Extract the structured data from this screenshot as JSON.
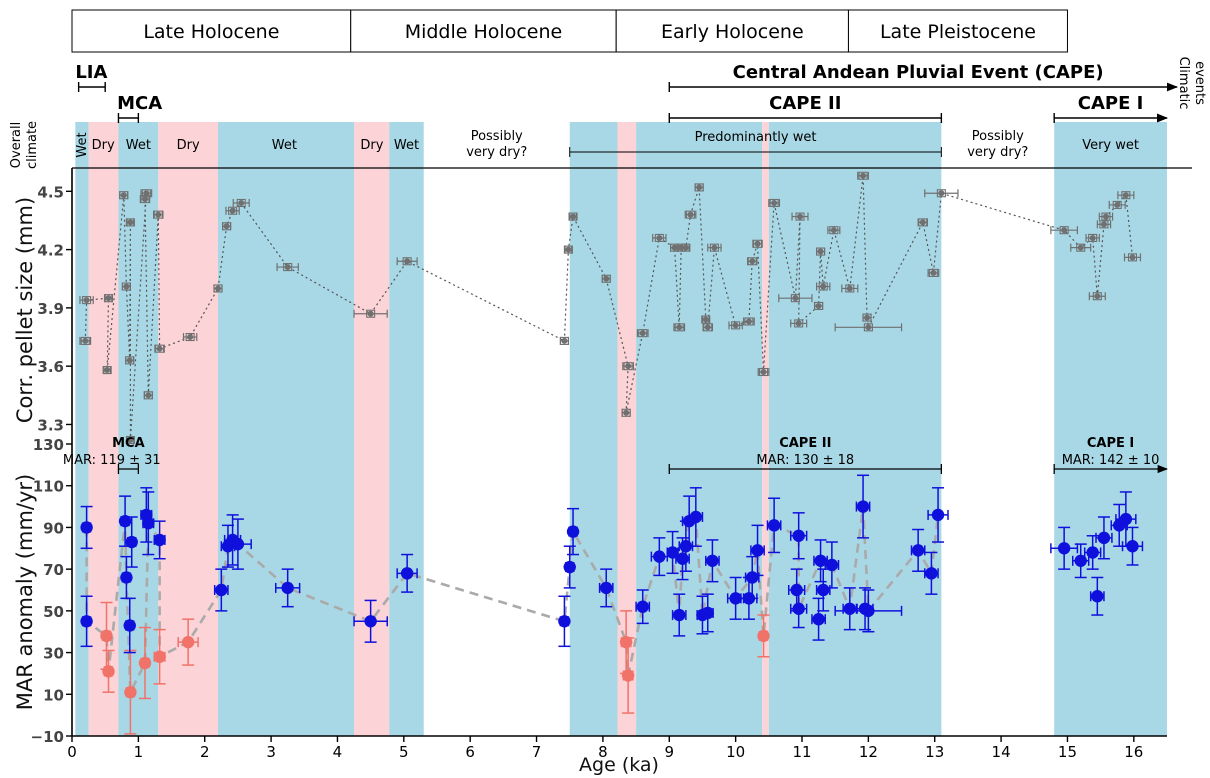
{
  "chart_data": {
    "type": "scatter",
    "x_axis": {
      "label": "Age (ka)",
      "range": [
        0,
        16.5
      ],
      "ticks": [
        0,
        1,
        2,
        3,
        4,
        5,
        6,
        7,
        8,
        9,
        10,
        11,
        12,
        13,
        14,
        15,
        16
      ]
    },
    "colors": {
      "wet_band": "#a8d8e6",
      "dry_band": "#fcd3d6",
      "gray_series": "#707070",
      "wet_points": "#1010dd",
      "dry_points": "#f07268"
    },
    "epochs": [
      {
        "label": "Late Holocene",
        "from": 0,
        "to": 4.2
      },
      {
        "label": "Middle Holocene",
        "from": 4.2,
        "to": 8.2
      },
      {
        "label": "Early Holocene",
        "from": 8.2,
        "to": 11.7
      },
      {
        "label": "Late Pleistocene",
        "from": 11.7,
        "to": 15
      }
    ],
    "climatic_events_label": "Climatic events",
    "events": [
      {
        "label": "LIA",
        "from": 0.1,
        "to": 0.5,
        "level": 1,
        "arrow": false
      },
      {
        "label": "Central Andean Pluvial Event (CAPE)",
        "from": 9.0,
        "to": 16.65,
        "level": 1,
        "arrow": true
      },
      {
        "label": "MCA",
        "from": 0.7,
        "to": 1.0,
        "level": 2,
        "arrow": false
      },
      {
        "label": "CAPE II",
        "from": 9.0,
        "to": 13.1,
        "level": 2,
        "arrow": false
      },
      {
        "label": "CAPE I",
        "from": 14.8,
        "to": 16.5,
        "level": 2,
        "arrow": true
      }
    ],
    "overall_climate_label": "Overall climate",
    "climate_bands": [
      {
        "from": 0.05,
        "to": 0.25,
        "type": "wet"
      },
      {
        "from": 0.25,
        "to": 0.7,
        "type": "dry"
      },
      {
        "from": 0.7,
        "to": 1.3,
        "type": "wet"
      },
      {
        "from": 1.3,
        "to": 2.2,
        "type": "dry"
      },
      {
        "from": 2.2,
        "to": 4.25,
        "type": "wet"
      },
      {
        "from": 4.25,
        "to": 4.78,
        "type": "dry"
      },
      {
        "from": 4.78,
        "to": 5.3,
        "type": "wet"
      },
      {
        "from": 7.5,
        "to": 8.22,
        "type": "wet"
      },
      {
        "from": 8.22,
        "to": 8.5,
        "type": "dry"
      },
      {
        "from": 8.5,
        "to": 10.4,
        "type": "wet"
      },
      {
        "from": 10.4,
        "to": 10.5,
        "type": "dry"
      },
      {
        "from": 10.5,
        "to": 13.1,
        "type": "wet"
      },
      {
        "from": 14.8,
        "to": 16.5,
        "type": "wet"
      }
    ],
    "climate_labels": [
      {
        "text": "Wet",
        "x": 0.15,
        "rotated": true
      },
      {
        "text": "Dry",
        "x": 0.47
      },
      {
        "text": "Wet",
        "x": 1.0
      },
      {
        "text": "Dry",
        "x": 1.75
      },
      {
        "text": "Wet",
        "x": 3.2
      },
      {
        "text": "Dry",
        "x": 4.52
      },
      {
        "text": "Wet",
        "x": 5.04
      },
      {
        "text": "Possibly very dry?",
        "x": 6.4
      },
      {
        "text": "Predominantly wet",
        "x": 10.3
      },
      {
        "text": "Possibly very dry?",
        "x": 13.95
      },
      {
        "text": "Very wet",
        "x": 15.65
      }
    ],
    "predominantly_wet_span": [
      7.5,
      13.1
    ],
    "top_panel": {
      "ylabel": "Corr. pellet size (mm)",
      "ylim": [
        3.22,
        4.62
      ],
      "yticks": [
        3.3,
        3.6,
        3.9,
        4.2,
        4.5
      ],
      "points": [
        [
          0.2,
          3.73,
          0.08
        ],
        [
          0.22,
          3.94,
          0.1
        ],
        [
          0.55,
          3.95,
          0.05
        ],
        [
          0.53,
          3.58,
          0.05
        ],
        [
          0.78,
          4.48,
          0.06
        ],
        [
          0.82,
          4.01,
          0.06
        ],
        [
          0.87,
          3.63,
          0.06
        ],
        [
          0.88,
          4.34,
          0.05
        ],
        [
          0.88,
          3.22,
          0.05
        ],
        [
          1.12,
          4.49,
          0.08
        ],
        [
          1.1,
          4.46,
          0.07
        ],
        [
          1.15,
          3.45,
          0.06
        ],
        [
          1.3,
          4.38,
          0.07
        ],
        [
          1.32,
          3.69,
          0.07
        ],
        [
          1.78,
          3.75,
          0.1
        ],
        [
          2.2,
          4.0,
          0.06
        ],
        [
          2.33,
          4.32,
          0.06
        ],
        [
          2.42,
          4.4,
          0.1
        ],
        [
          2.55,
          4.44,
          0.12
        ],
        [
          3.25,
          4.11,
          0.16
        ],
        [
          4.5,
          3.87,
          0.25
        ],
        [
          5.05,
          4.14,
          0.15
        ],
        [
          7.42,
          3.73,
          0.06
        ],
        [
          7.48,
          4.2,
          0.05
        ],
        [
          7.55,
          4.37,
          0.05
        ],
        [
          8.05,
          4.05,
          0.06
        ],
        [
          8.38,
          3.6,
          0.08
        ],
        [
          8.35,
          3.36,
          0.06
        ],
        [
          8.6,
          3.77,
          0.08
        ],
        [
          8.85,
          4.26,
          0.1
        ],
        [
          9.08,
          4.21,
          0.06
        ],
        [
          9.15,
          3.8,
          0.08
        ],
        [
          9.18,
          4.21,
          0.06
        ],
        [
          9.25,
          4.21,
          0.05
        ],
        [
          9.32,
          4.38,
          0.08
        ],
        [
          9.45,
          4.52,
          0.06
        ],
        [
          9.55,
          3.84,
          0.05
        ],
        [
          9.58,
          3.8,
          0.07
        ],
        [
          9.68,
          4.21,
          0.1
        ],
        [
          10.0,
          3.81,
          0.1
        ],
        [
          10.2,
          3.83,
          0.08
        ],
        [
          10.25,
          4.14,
          0.07
        ],
        [
          10.33,
          4.23,
          0.07
        ],
        [
          10.42,
          3.57,
          0.08
        ],
        [
          10.58,
          4.44,
          0.08
        ],
        [
          10.9,
          3.95,
          0.25
        ],
        [
          10.97,
          4.37,
          0.12
        ],
        [
          10.95,
          3.82,
          0.12
        ],
        [
          11.25,
          3.91,
          0.06
        ],
        [
          11.28,
          4.19,
          0.06
        ],
        [
          11.32,
          4.01,
          0.1
        ],
        [
          11.48,
          4.3,
          0.09
        ],
        [
          11.72,
          4.0,
          0.12
        ],
        [
          11.92,
          4.58,
          0.08
        ],
        [
          11.98,
          3.85,
          0.06
        ],
        [
          12.0,
          3.8,
          0.5
        ],
        [
          12.82,
          4.34,
          0.07
        ],
        [
          12.98,
          4.08,
          0.08
        ],
        [
          13.1,
          4.49,
          0.25
        ],
        [
          14.95,
          4.3,
          0.2
        ],
        [
          15.2,
          4.21,
          0.15
        ],
        [
          15.38,
          4.26,
          0.1
        ],
        [
          15.45,
          3.96,
          0.12
        ],
        [
          15.55,
          4.33,
          0.1
        ],
        [
          15.58,
          4.37,
          0.1
        ],
        [
          15.75,
          4.43,
          0.12
        ],
        [
          15.88,
          4.48,
          0.12
        ],
        [
          15.98,
          4.16,
          0.12
        ]
      ]
    },
    "bottom_panel": {
      "ylabel": "MAR anomaly (mm/yr)",
      "ylim": [
        -10,
        130
      ],
      "yticks": [
        -10,
        10,
        30,
        50,
        70,
        90,
        110,
        130
      ],
      "annotations": [
        {
          "title": "MCA",
          "subtitle": "MAR: 119 ± 31",
          "from": 0.7,
          "to": 1.0,
          "arrow": false
        },
        {
          "title": "CAPE II",
          "subtitle": "MAR: 130 ± 18",
          "from": 9.0,
          "to": 13.1,
          "arrow": false
        },
        {
          "title": "CAPE I",
          "subtitle": "MAR: 142 ± 10",
          "from": 14.8,
          "to": 16.5,
          "arrow": true
        }
      ],
      "dry_points": [
        [
          0.52,
          38,
          0.06,
          16
        ],
        [
          0.55,
          21,
          0.06,
          10
        ],
        [
          0.88,
          11,
          0.06,
          20
        ],
        [
          1.1,
          25,
          0.06,
          17
        ],
        [
          1.32,
          28,
          0.08,
          13
        ],
        [
          1.75,
          35,
          0.15,
          11
        ],
        [
          8.35,
          35,
          0.07,
          15
        ],
        [
          8.38,
          19,
          0.07,
          18
        ],
        [
          10.42,
          38,
          0.06,
          10
        ]
      ],
      "wet_points": [
        [
          0.22,
          90,
          0.06,
          10
        ],
        [
          0.22,
          45,
          0.06,
          12
        ],
        [
          0.8,
          93,
          0.06,
          12
        ],
        [
          0.82,
          66,
          0.06,
          10
        ],
        [
          0.87,
          43,
          0.06,
          13
        ],
        [
          0.9,
          83,
          0.06,
          12
        ],
        [
          1.12,
          96,
          0.08,
          13
        ],
        [
          1.15,
          92,
          0.08,
          15
        ],
        [
          1.32,
          84,
          0.08,
          9
        ],
        [
          2.25,
          60,
          0.1,
          10
        ],
        [
          2.35,
          81,
          0.1,
          10
        ],
        [
          2.42,
          84,
          0.12,
          12
        ],
        [
          2.5,
          82,
          0.2,
          12
        ],
        [
          3.25,
          61,
          0.18,
          9
        ],
        [
          4.5,
          45,
          0.25,
          10
        ],
        [
          5.05,
          68,
          0.15,
          9
        ],
        [
          7.42,
          45,
          0.06,
          12
        ],
        [
          7.5,
          71,
          0.06,
          10
        ],
        [
          7.55,
          88,
          0.06,
          11
        ],
        [
          8.05,
          61,
          0.1,
          9
        ],
        [
          8.6,
          52,
          0.1,
          8
        ],
        [
          8.85,
          76,
          0.12,
          9
        ],
        [
          9.05,
          78,
          0.08,
          10
        ],
        [
          9.15,
          48,
          0.1,
          10
        ],
        [
          9.2,
          75,
          0.1,
          10
        ],
        [
          9.25,
          81,
          0.1,
          12
        ],
        [
          9.3,
          93,
          0.1,
          12
        ],
        [
          9.4,
          95,
          0.1,
          14
        ],
        [
          9.5,
          48,
          0.08,
          9
        ],
        [
          9.58,
          49,
          0.08,
          9
        ],
        [
          9.65,
          74,
          0.1,
          10
        ],
        [
          10.0,
          56,
          0.12,
          10
        ],
        [
          10.2,
          56,
          0.12,
          10
        ],
        [
          10.25,
          66,
          0.1,
          10
        ],
        [
          10.33,
          79,
          0.1,
          12
        ],
        [
          10.58,
          91,
          0.1,
          13
        ],
        [
          10.92,
          60,
          0.12,
          10
        ],
        [
          10.95,
          86,
          0.12,
          11
        ],
        [
          10.95,
          51,
          0.12,
          9
        ],
        [
          11.25,
          46,
          0.1,
          10
        ],
        [
          11.28,
          74,
          0.1,
          10
        ],
        [
          11.32,
          60,
          0.1,
          10
        ],
        [
          11.45,
          72,
          0.1,
          11
        ],
        [
          11.72,
          51,
          0.1,
          10
        ],
        [
          11.92,
          100,
          0.1,
          15
        ],
        [
          11.95,
          51,
          0.12,
          10
        ],
        [
          12.0,
          50,
          0.5,
          10
        ],
        [
          12.75,
          79,
          0.1,
          10
        ],
        [
          12.95,
          68,
          0.1,
          10
        ],
        [
          13.05,
          96,
          0.15,
          13
        ],
        [
          14.95,
          80,
          0.2,
          10
        ],
        [
          15.2,
          74,
          0.12,
          8
        ],
        [
          15.38,
          78,
          0.12,
          8
        ],
        [
          15.45,
          57,
          0.1,
          9
        ],
        [
          15.55,
          85,
          0.12,
          10
        ],
        [
          15.78,
          91,
          0.12,
          10
        ],
        [
          15.88,
          94,
          0.15,
          13
        ],
        [
          15.98,
          81,
          0.15,
          9
        ]
      ],
      "trend": [
        [
          0.22,
          90
        ],
        [
          0.22,
          45
        ],
        [
          0.52,
          38
        ],
        [
          0.55,
          21
        ],
        [
          0.8,
          93
        ],
        [
          0.82,
          66
        ],
        [
          0.88,
          11
        ],
        [
          1.1,
          25
        ],
        [
          1.15,
          92
        ],
        [
          1.32,
          84
        ],
        [
          1.32,
          28
        ],
        [
          1.75,
          35
        ],
        [
          2.25,
          60
        ],
        [
          2.35,
          81
        ],
        [
          2.5,
          82
        ],
        [
          3.25,
          61
        ],
        [
          4.5,
          45
        ],
        [
          5.05,
          68
        ],
        [
          7.42,
          45
        ],
        [
          7.5,
          71
        ],
        [
          7.55,
          88
        ],
        [
          8.05,
          61
        ],
        [
          8.35,
          35
        ],
        [
          8.38,
          19
        ],
        [
          8.6,
          52
        ],
        [
          8.85,
          76
        ],
        [
          9.05,
          78
        ],
        [
          9.15,
          48
        ],
        [
          9.2,
          75
        ],
        [
          9.25,
          81
        ],
        [
          9.3,
          93
        ],
        [
          9.4,
          95
        ],
        [
          9.5,
          48
        ],
        [
          9.65,
          74
        ],
        [
          10.0,
          56
        ],
        [
          10.25,
          66
        ],
        [
          10.33,
          79
        ],
        [
          10.42,
          38
        ],
        [
          10.58,
          91
        ],
        [
          10.95,
          86
        ],
        [
          10.95,
          51
        ],
        [
          11.28,
          74
        ],
        [
          11.45,
          72
        ],
        [
          11.72,
          51
        ],
        [
          11.92,
          100
        ],
        [
          12.0,
          50
        ],
        [
          12.75,
          79
        ],
        [
          12.95,
          68
        ],
        [
          13.05,
          96
        ]
      ]
    }
  }
}
